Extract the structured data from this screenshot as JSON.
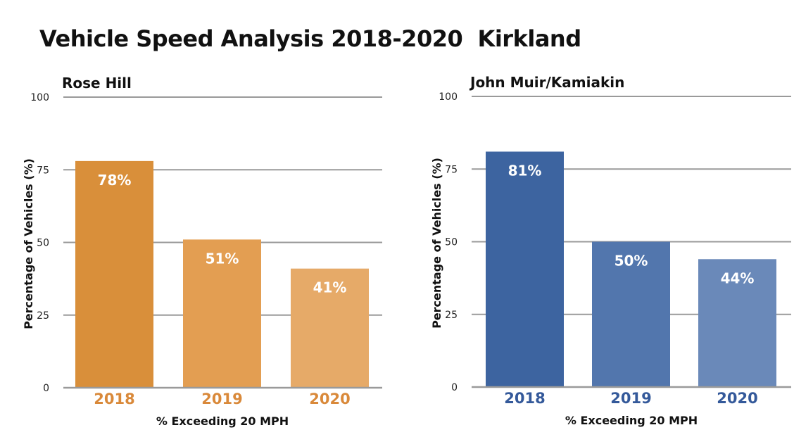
{
  "title": "Vehicle Speed Analysis 2018-2020  Kirkland",
  "chart_data": [
    {
      "type": "bar",
      "title": "Rose Hill",
      "xlabel": "% Exceeding 20 MPH",
      "ylabel": "Percentage of Vehicles (%)",
      "categories": [
        "2018",
        "2019",
        "2020"
      ],
      "values": [
        78,
        51,
        41
      ],
      "data_labels": [
        "78%",
        "51%",
        "41%"
      ],
      "ylim": [
        0,
        100
      ],
      "yticks": [
        0,
        25,
        50,
        75,
        100
      ],
      "grid": true,
      "colors": [
        "#d98f3a",
        "#e39e52",
        "#e6aa68"
      ],
      "category_label_color": "#d9893a"
    },
    {
      "type": "bar",
      "title": "John Muir/Kamiakin",
      "xlabel": "% Exceeding 20 MPH",
      "ylabel": "Percentage of Vehicles (%)",
      "categories": [
        "2018",
        "2019",
        "2020"
      ],
      "values": [
        81,
        50,
        44
      ],
      "data_labels": [
        "81%",
        "50%",
        "44%"
      ],
      "ylim": [
        0,
        100
      ],
      "yticks": [
        0,
        25,
        50,
        75,
        100
      ],
      "grid": true,
      "colors": [
        "#3d64a0",
        "#5276ad",
        "#6a89b9"
      ],
      "category_label_color": "#34599a"
    }
  ]
}
